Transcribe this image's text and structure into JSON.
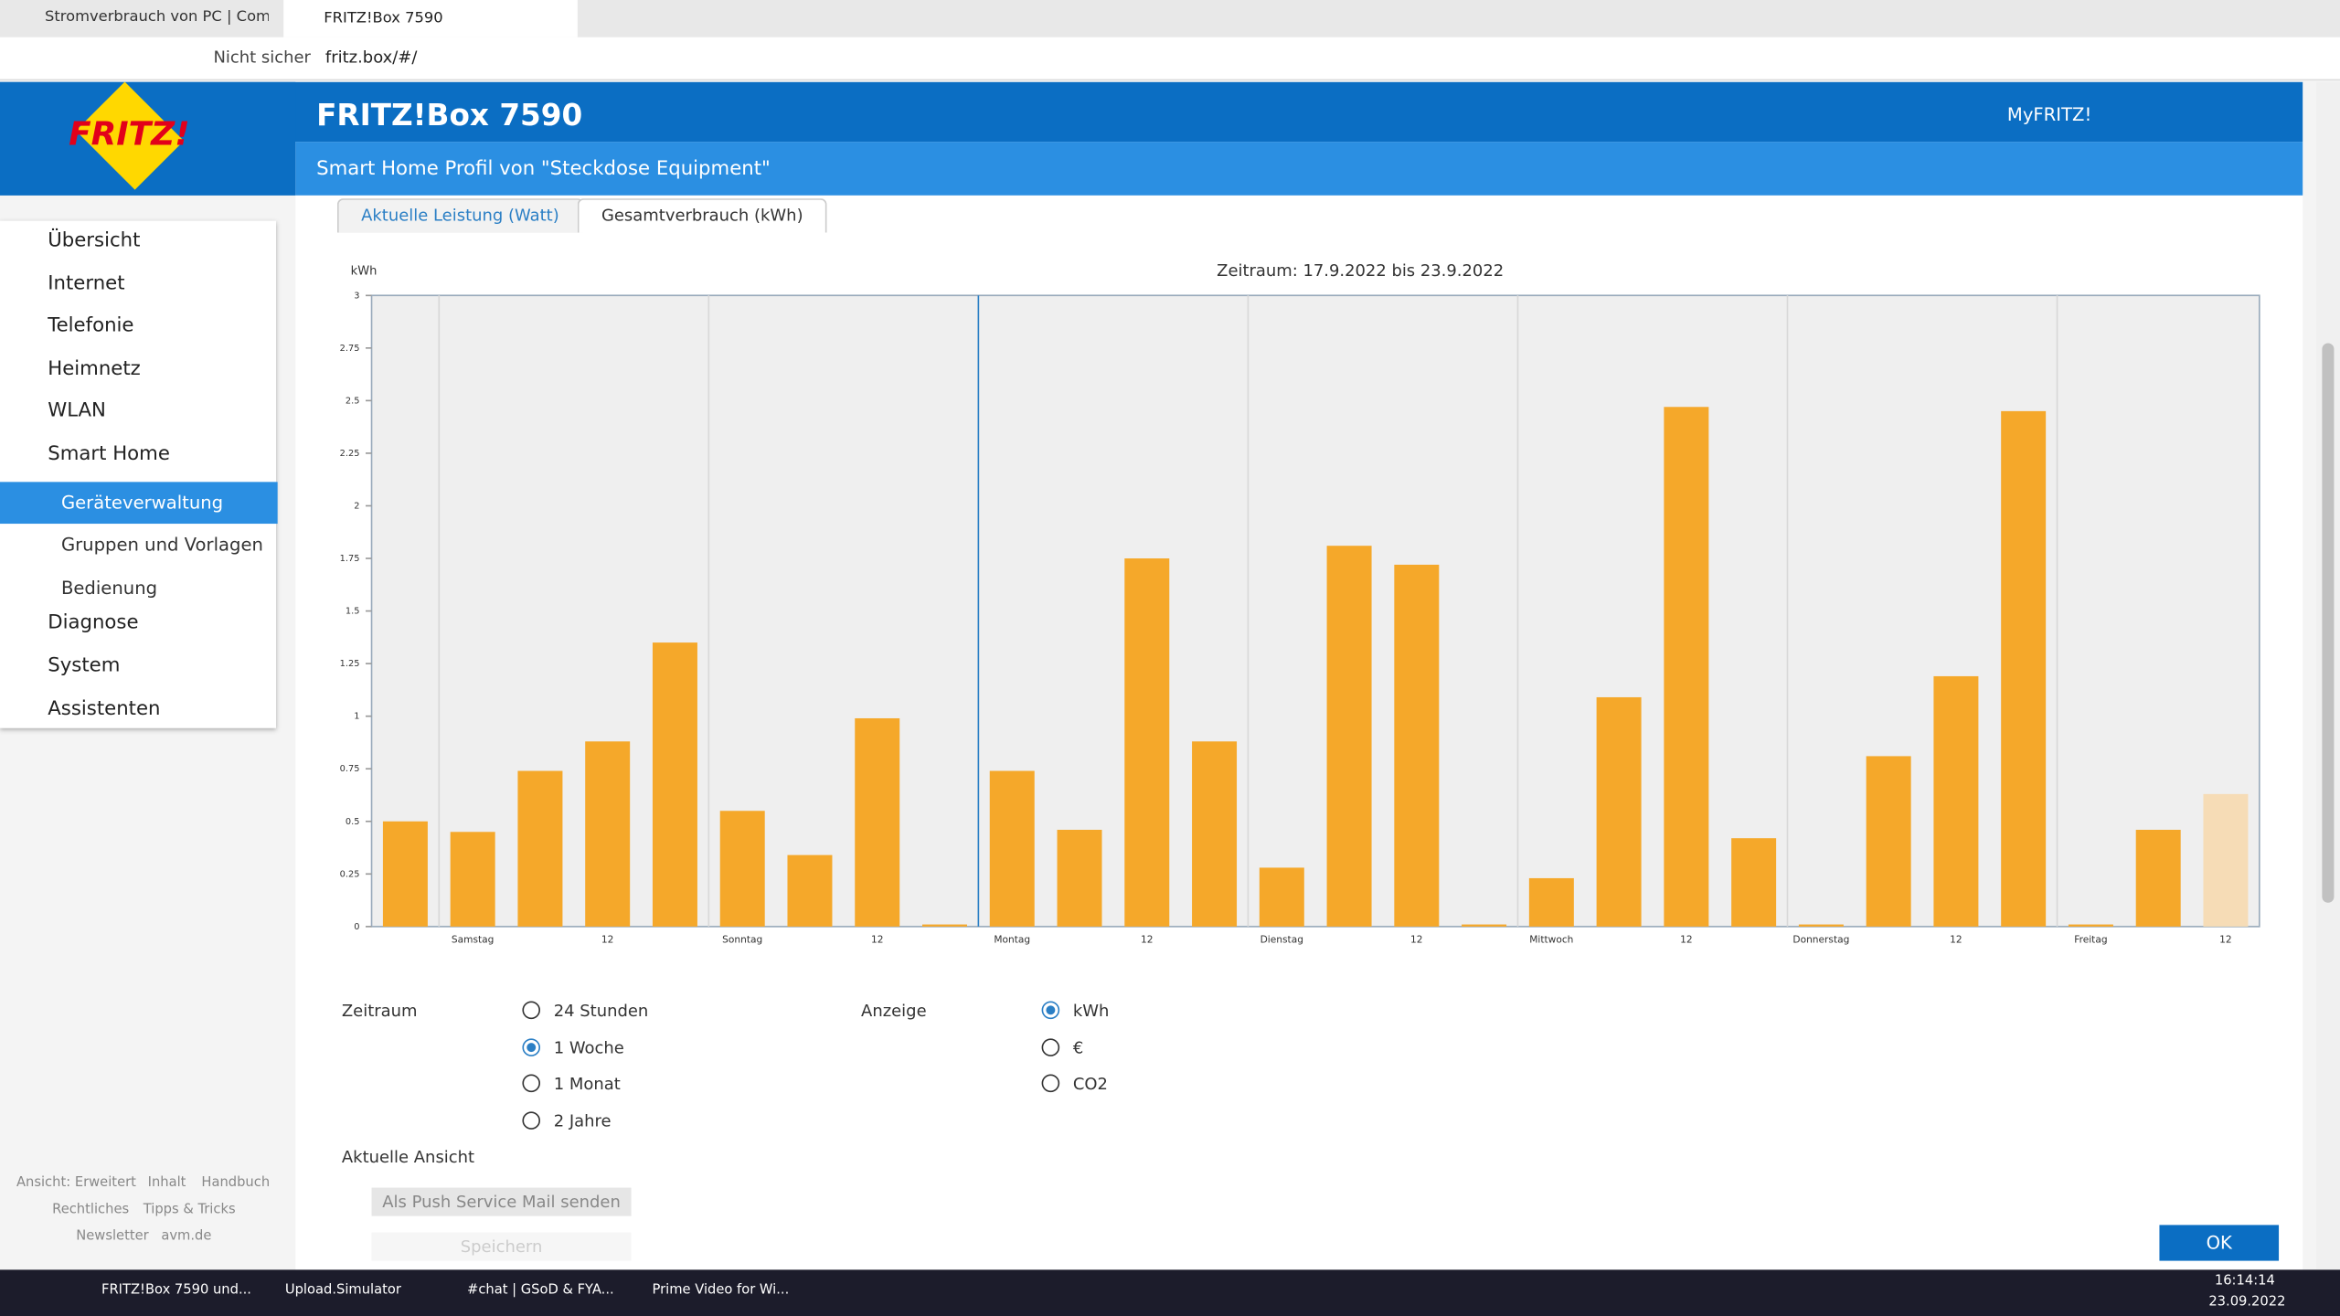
{
  "browser": {
    "tabs": [
      "Stromverbrauch von PC | Compu",
      "FRITZ!Box 7590"
    ],
    "security": "Nicht sicher",
    "url": "fritz.box/#/"
  },
  "header": {
    "logo": "FRITZ!",
    "title": "FRITZ!Box 7590",
    "myfritz": "MyFRITZ!",
    "subtitle": "Smart Home Profil von \"Steckdose Equipment\""
  },
  "nav": {
    "items": [
      "Übersicht",
      "Internet",
      "Telefonie",
      "Heimnetz",
      "WLAN",
      "Smart Home"
    ],
    "subitems": [
      "Geräteverwaltung",
      "Gruppen und Vorlagen",
      "Bedienung"
    ],
    "items_after": [
      "Diagnose",
      "System",
      "Assistenten"
    ]
  },
  "tabs": [
    "Aktuelle Leistung (Watt)",
    "Gesamtverbrauch (kWh)"
  ],
  "chart_data": {
    "type": "bar",
    "title": "Zeitraum: 17.9.2022 bis 23.9.2022",
    "y_label": "kWh",
    "categories": [
      null,
      "Samstag",
      null,
      "12",
      null,
      "Sonntag",
      null,
      "12",
      null,
      "Montag",
      null,
      "12",
      null,
      "Dienstag",
      null,
      "12",
      null,
      "Mittwoch",
      null,
      "12",
      null,
      "Donnerstag",
      null,
      "12",
      null,
      "Freitag",
      null,
      "12"
    ],
    "values": [
      0.5,
      0.45,
      0.74,
      0.88,
      1.35,
      0.55,
      0.34,
      0.99,
      0.01,
      0.74,
      0.46,
      1.75,
      0.88,
      0.28,
      1.81,
      1.72,
      0.01,
      0.23,
      1.09,
      2.47,
      0.42,
      0.01,
      0.81,
      1.19,
      2.45,
      0.01,
      0.46,
      0.63
    ],
    "color": "#f5a82a",
    "last_bar_color": "#f6dcb6",
    "ylim": [
      0,
      3
    ],
    "yticks": [
      0,
      0.25,
      0.5,
      0.75,
      1,
      1.25,
      1.5,
      1.75,
      2,
      2.25,
      2.5,
      2.75,
      3
    ]
  },
  "form": {
    "zeitraum_label": "Zeitraum",
    "zeitraum_options": [
      "24 Stunden",
      "1 Woche",
      "1 Monat",
      "2 Jahre"
    ],
    "anzeige_label": "Anzeige",
    "anzeige_options": [
      "kWh",
      "€",
      "CO2"
    ],
    "current_view": "Aktuelle Ansicht",
    "buttons": [
      "Als Push Service Mail senden",
      "Speichern"
    ],
    "ok": "OK"
  },
  "footer_links": [
    "Ansicht: Erweitert",
    "Inhalt",
    "Handbuch",
    "Rechtliches",
    "Tipps & Tricks",
    "Newsletter",
    "avm.de"
  ],
  "taskbar": {
    "apps": [
      "FRITZ!Box 7590 und...",
      "Upload.Simulator",
      "#chat | GSoD & FYA...",
      "Prime Video for Wi..."
    ],
    "time": "16:14:14",
    "date": "23.09.2022"
  }
}
